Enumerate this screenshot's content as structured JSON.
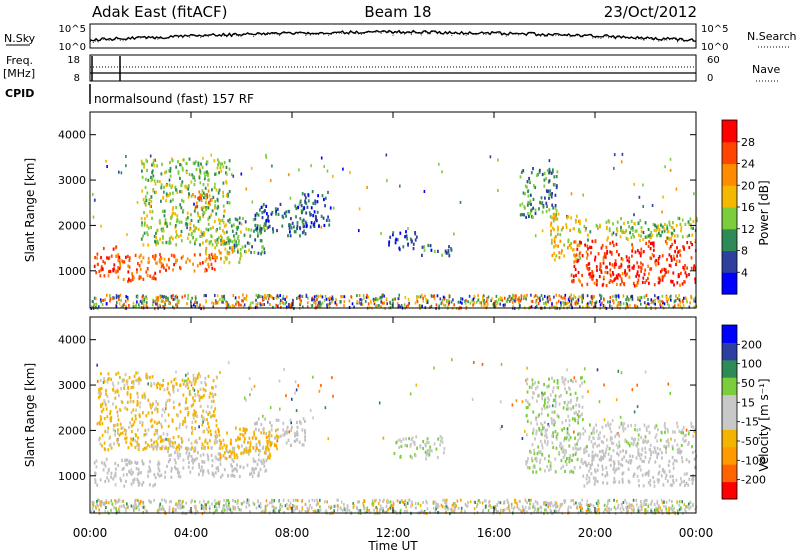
{
  "header": {
    "station": "Adak East (fitACF)",
    "beam": "Beam 18",
    "date": "23/Oct/2012"
  },
  "noise_panel": {
    "left_label": "N.Sky",
    "right_label": "N.Search",
    "left_ticks": [
      "10^5",
      "10^0"
    ],
    "right_ticks": [
      "10^5",
      "10^0"
    ]
  },
  "freq_panel": {
    "left_label": "Freq.",
    "left_unit": "[MHz]",
    "right_label": "Nave",
    "left_ticks": [
      "18",
      "8"
    ],
    "right_ticks": [
      "60",
      "0"
    ]
  },
  "cpid": {
    "label": "CPID",
    "value": "normalsound (fast) 157 RF"
  },
  "x_axis": {
    "label": "Time UT",
    "ticks": [
      "00:00",
      "04:00",
      "08:00",
      "12:00",
      "16:00",
      "20:00",
      "00:00"
    ]
  },
  "colors": {
    "power_scale": [
      "#0000ff",
      "#2f3f9f",
      "#2e8b57",
      "#7ccd3c",
      "#f5b800",
      "#ff8c00",
      "#ff4500",
      "#ff0000"
    ],
    "velocity_scale": [
      "#ff0000",
      "#ff6400",
      "#ff9a00",
      "#f2b400",
      "#c8c8c8",
      "#c8c8c8",
      "#7ccd3c",
      "#2e8b57",
      "#2f3f9f",
      "#0000ff"
    ],
    "ground_scatter": "#c0c0c0"
  },
  "chart_data": [
    {
      "type": "heatmap",
      "name": "power",
      "ylabel": "Slant Range [km]",
      "xlabel": "",
      "xlim": [
        0,
        24
      ],
      "ylim": [
        180,
        4500
      ],
      "yticks": [
        1000,
        2000,
        3000,
        4000
      ],
      "colorbar_label": "Power [dB]",
      "colorbar_ticks": [
        "28",
        "24",
        "20",
        "16",
        "12",
        "8",
        "4"
      ],
      "colorbar_range": [
        0,
        32
      ],
      "regions": [
        {
          "t0": 0.1,
          "t1": 1.2,
          "r0": 900,
          "r1": 1600,
          "value": 26
        },
        {
          "t0": 1.0,
          "t1": 2.6,
          "r0": 800,
          "r1": 1400,
          "value": 25
        },
        {
          "t0": 2.6,
          "t1": 5.0,
          "r0": 1000,
          "r1": 1400,
          "value": 24
        },
        {
          "t0": 4.5,
          "t1": 6.0,
          "r0": 1200,
          "r1": 1700,
          "value": 18
        },
        {
          "t0": 5.5,
          "t1": 7.0,
          "r0": 1400,
          "r1": 2200,
          "value": 12
        },
        {
          "t0": 6.5,
          "t1": 8.5,
          "r0": 1800,
          "r1": 2500,
          "value": 8
        },
        {
          "t0": 8.3,
          "t1": 9.5,
          "r0": 2000,
          "r1": 2800,
          "value": 6
        },
        {
          "t0": 2.0,
          "t1": 5.5,
          "r0": 1600,
          "r1": 3500,
          "value": 14
        },
        {
          "t0": 4.0,
          "t1": 4.8,
          "r0": 2400,
          "r1": 2800,
          "value": 22
        },
        {
          "t0": 11.8,
          "t1": 13.0,
          "r0": 1500,
          "r1": 1900,
          "value": 6
        },
        {
          "t0": 13.0,
          "t1": 14.3,
          "r0": 1350,
          "r1": 1600,
          "value": 8
        },
        {
          "t0": 17.0,
          "t1": 18.5,
          "r0": 2200,
          "r1": 3300,
          "value": 10
        },
        {
          "t0": 18.2,
          "t1": 19.4,
          "r0": 1200,
          "r1": 2300,
          "value": 18
        },
        {
          "t0": 19.0,
          "t1": 24.0,
          "r0": 700,
          "r1": 1700,
          "value": 28
        },
        {
          "t0": 19.5,
          "t1": 24.0,
          "r0": 1700,
          "r1": 2200,
          "value": 14
        }
      ]
    },
    {
      "type": "heatmap",
      "name": "velocity",
      "ylabel": "Slant Range [km]",
      "xlabel": "Time UT",
      "xlim": [
        0,
        24
      ],
      "ylim": [
        180,
        4500
      ],
      "yticks": [
        1000,
        2000,
        3000,
        4000
      ],
      "colorbar_label": "Velocity [m s⁻¹]",
      "colorbar_ticks": [
        "200",
        "100",
        "50",
        "15",
        "-15",
        "-50",
        "-100",
        "-200"
      ],
      "colorbar_range": [
        -250,
        250
      ],
      "regions": [
        {
          "t0": 0.1,
          "t1": 2.6,
          "r0": 800,
          "r1": 1400,
          "value": 0,
          "ground": true
        },
        {
          "t0": 2.6,
          "t1": 7.0,
          "r0": 1000,
          "r1": 1700,
          "value": 0,
          "ground": true
        },
        {
          "t0": 6.5,
          "t1": 8.5,
          "r0": 1700,
          "r1": 2300,
          "value": 0,
          "ground": true
        },
        {
          "t0": 0.3,
          "t1": 5.0,
          "r0": 1600,
          "r1": 3300,
          "value": -60
        },
        {
          "t0": 5.0,
          "t1": 7.5,
          "r0": 1400,
          "r1": 2100,
          "value": -80
        },
        {
          "t0": 12.0,
          "t1": 14.0,
          "r0": 1400,
          "r1": 1900,
          "value": 40
        },
        {
          "t0": 17.2,
          "t1": 19.5,
          "r0": 1100,
          "r1": 3200,
          "value": 45
        },
        {
          "t0": 19.5,
          "t1": 24.0,
          "r0": 800,
          "r1": 1600,
          "value": 0,
          "ground": true
        },
        {
          "t0": 19.5,
          "t1": 24.0,
          "r0": 1600,
          "r1": 2200,
          "value": 30
        }
      ]
    }
  ]
}
